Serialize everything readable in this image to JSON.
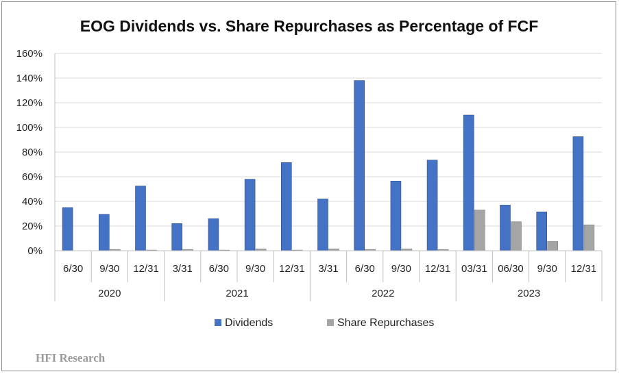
{
  "chart_data": {
    "type": "bar",
    "title": "EOG Dividends vs. Share Repurchases as Percentage of FCF",
    "xlabel": "",
    "ylabel": "",
    "ylim": [
      0,
      160
    ],
    "yticks": [
      "0%",
      "20%",
      "40%",
      "60%",
      "80%",
      "100%",
      "120%",
      "140%",
      "160%"
    ],
    "grid": true,
    "legend_position": "bottom",
    "categories": [
      "6/30",
      "9/30",
      "12/31",
      "3/31",
      "6/30",
      "9/30",
      "12/31",
      "3/31",
      "6/30",
      "9/30",
      "12/31",
      "03/31",
      "06/30",
      "9/30",
      "12/31"
    ],
    "groups": [
      {
        "label": "2020",
        "count": 3
      },
      {
        "label": "2021",
        "count": 4
      },
      {
        "label": "2022",
        "count": 4
      },
      {
        "label": "2023",
        "count": 4
      }
    ],
    "series": [
      {
        "name": "Dividends",
        "color": "#4472C4",
        "values": [
          35,
          29.5,
          52.5,
          22,
          26,
          58,
          71.5,
          42,
          138,
          56.5,
          73.5,
          110,
          37,
          31.5,
          92.5
        ]
      },
      {
        "name": "Share Repurchases",
        "color": "#A5A5A5",
        "values": [
          0,
          1,
          0.5,
          1,
          0.5,
          1.5,
          0.5,
          1.5,
          1,
          1.5,
          1,
          33,
          23.5,
          7.5,
          21
        ]
      }
    ]
  },
  "watermark": "HFI Research"
}
